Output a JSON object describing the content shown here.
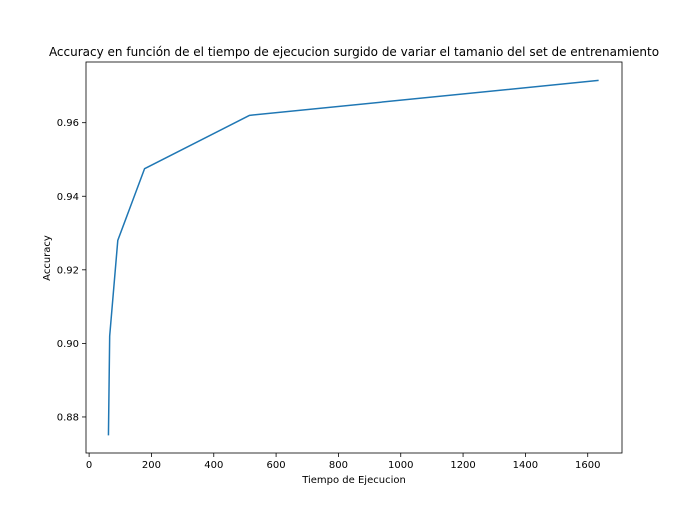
{
  "chart_data": {
    "type": "line",
    "title": "Accuracy en función de el tiempo de ejecucion surgido de variar el tamanio del set de entrenamiento",
    "xlabel": "Tiempo de Ejecucion",
    "ylabel": "Accuracy",
    "xlim": [
      -10,
      1710
    ],
    "ylim": [
      0.8702,
      0.9765
    ],
    "x_ticks": [
      0,
      200,
      400,
      600,
      800,
      1000,
      1200,
      1400,
      1600
    ],
    "y_ticks": [
      0.88,
      0.9,
      0.92,
      0.94,
      0.96
    ],
    "grid": false,
    "legend": "none",
    "series": [
      {
        "color": "#1f77b4",
        "x": [
          62,
          66,
          92,
          178,
          515,
          1635
        ],
        "y": [
          0.875,
          0.902,
          0.928,
          0.9475,
          0.962,
          0.9715
        ]
      }
    ]
  }
}
